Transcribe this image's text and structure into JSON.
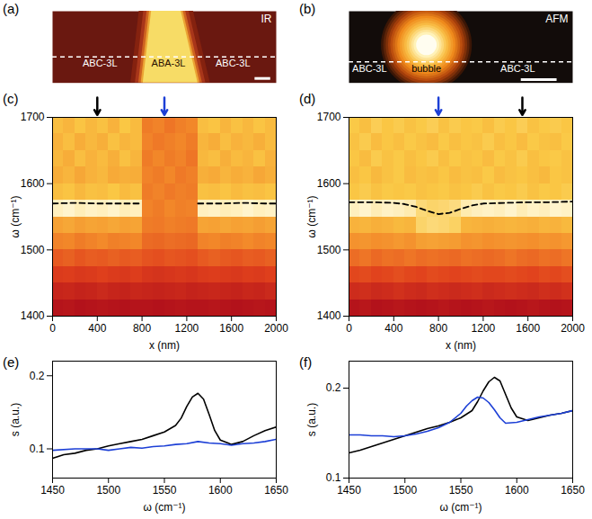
{
  "chart_data": [
    {
      "type": "image",
      "label": "(a)",
      "inset_label": "IR",
      "region_labels": [
        "ABC-3L",
        "ABA-3L",
        "ABC-3L"
      ],
      "tick_labels": false,
      "xlim": [
        0,
        2000
      ],
      "ylim": [
        0,
        640
      ],
      "stripe": {
        "top": [
          885,
          1150
        ],
        "bottom": [
          810,
          1300
        ]
      },
      "line_y": 233,
      "scale_bar": {
        "x": [
          1810,
          1950
        ],
        "y": 40
      }
    },
    {
      "type": "image",
      "label": "(b)",
      "inset_label": "AFM",
      "region_labels": [
        "ABC-3L",
        "bubble",
        "ABC-3L"
      ],
      "tick_labels": false,
      "xlim": [
        0,
        2000
      ],
      "ylim": [
        0,
        640
      ],
      "bubble": {
        "x": 692,
        "y": 340,
        "radius": 325,
        "core_radius": 115
      },
      "line_y": 188,
      "scale_bar": {
        "x": [
          1540,
          1860
        ],
        "y": 30
      }
    },
    {
      "type": "heatmap",
      "label": "(c)",
      "xlabel": "x (nm)",
      "ylabel": "ω (cm⁻¹)",
      "xlim": [
        0,
        2000
      ],
      "xticks": [
        0,
        400,
        800,
        1200,
        1600,
        2000
      ],
      "ylim": [
        1400,
        1700
      ],
      "yticks": [
        1400,
        1500,
        1600,
        1700
      ],
      "heatmap": {
        "x_edges": [
          0,
          100,
          200,
          300,
          400,
          500,
          600,
          700,
          800,
          900,
          1000,
          1100,
          1200,
          1300,
          1400,
          1500,
          1600,
          1700,
          1800,
          1900,
          2000
        ],
        "y_edges": [
          1400,
          1425,
          1450,
          1475,
          1500,
          1525,
          1550,
          1575,
          1600,
          1625,
          1650,
          1675,
          1700
        ],
        "cells": [
          [
            0.12,
            0.13,
            0.11,
            0.12,
            0.13,
            0.12,
            0.11,
            0.12,
            0.12,
            0.11,
            0.12,
            0.13,
            0.12,
            0.12,
            0.13,
            0.12,
            0.11,
            0.12,
            0.13,
            0.12
          ],
          [
            0.2,
            0.21,
            0.19,
            0.2,
            0.22,
            0.2,
            0.19,
            0.21,
            0.2,
            0.19,
            0.2,
            0.21,
            0.19,
            0.2,
            0.21,
            0.2,
            0.19,
            0.21,
            0.2,
            0.22
          ],
          [
            0.3,
            0.31,
            0.29,
            0.3,
            0.32,
            0.3,
            0.29,
            0.31,
            0.28,
            0.27,
            0.28,
            0.29,
            0.28,
            0.3,
            0.31,
            0.3,
            0.29,
            0.31,
            0.3,
            0.32
          ],
          [
            0.4,
            0.42,
            0.39,
            0.41,
            0.4,
            0.42,
            0.4,
            0.41,
            0.38,
            0.37,
            0.39,
            0.38,
            0.37,
            0.4,
            0.42,
            0.4,
            0.39,
            0.41,
            0.4,
            0.42
          ],
          [
            0.52,
            0.53,
            0.5,
            0.52,
            0.54,
            0.51,
            0.52,
            0.53,
            0.45,
            0.44,
            0.46,
            0.45,
            0.44,
            0.52,
            0.53,
            0.51,
            0.52,
            0.54,
            0.52,
            0.53
          ],
          [
            0.62,
            0.64,
            0.61,
            0.63,
            0.62,
            0.64,
            0.62,
            0.63,
            0.5,
            0.49,
            0.51,
            0.5,
            0.49,
            0.63,
            0.62,
            0.64,
            0.62,
            0.63,
            0.61,
            0.63
          ],
          [
            0.95,
            0.97,
            0.94,
            0.96,
            0.95,
            0.97,
            0.94,
            0.95,
            0.52,
            0.5,
            0.53,
            0.51,
            0.52,
            0.95,
            0.96,
            0.94,
            0.95,
            0.97,
            0.95,
            0.96
          ],
          [
            0.72,
            0.74,
            0.7,
            0.73,
            0.72,
            0.75,
            0.71,
            0.73,
            0.5,
            0.52,
            0.49,
            0.51,
            0.5,
            0.73,
            0.72,
            0.74,
            0.71,
            0.73,
            0.72,
            0.74
          ],
          [
            0.66,
            0.69,
            0.64,
            0.68,
            0.7,
            0.65,
            0.67,
            0.66,
            0.52,
            0.5,
            0.53,
            0.49,
            0.51,
            0.67,
            0.65,
            0.69,
            0.66,
            0.68,
            0.64,
            0.67
          ],
          [
            0.7,
            0.66,
            0.72,
            0.68,
            0.71,
            0.67,
            0.73,
            0.69,
            0.5,
            0.53,
            0.5,
            0.52,
            0.48,
            0.7,
            0.72,
            0.67,
            0.71,
            0.69,
            0.73,
            0.68
          ],
          [
            0.68,
            0.72,
            0.66,
            0.7,
            0.67,
            0.73,
            0.69,
            0.71,
            0.52,
            0.49,
            0.51,
            0.53,
            0.5,
            0.69,
            0.66,
            0.72,
            0.68,
            0.7,
            0.67,
            0.71
          ],
          [
            0.72,
            0.69,
            0.74,
            0.7,
            0.73,
            0.68,
            0.75,
            0.71,
            0.5,
            0.52,
            0.48,
            0.51,
            0.53,
            0.72,
            0.74,
            0.69,
            0.73,
            0.7,
            0.74,
            0.71
          ]
        ]
      },
      "peak_line": {
        "color": "black",
        "x": [
          0,
          200,
          400,
          600,
          800,
          1050,
          1300,
          1500,
          1700,
          1900,
          2000
        ],
        "values": [
          1570,
          1571,
          1570,
          1570,
          1570,
          null,
          1570,
          1570,
          1571,
          1570,
          1570
        ]
      },
      "arrows": [
        {
          "x": 400,
          "color": "black"
        },
        {
          "x": 1000,
          "color": "#1c3fd6"
        }
      ]
    },
    {
      "type": "heatmap",
      "label": "(d)",
      "xlabel": "x (nm)",
      "ylabel": "ω (cm⁻¹)",
      "xlim": [
        0,
        2000
      ],
      "xticks": [
        0,
        400,
        800,
        1200,
        1600,
        2000
      ],
      "ylim": [
        1400,
        1700
      ],
      "yticks": [
        1400,
        1500,
        1600,
        1700
      ],
      "heatmap": {
        "x_edges": [
          0,
          100,
          200,
          300,
          400,
          500,
          600,
          700,
          800,
          900,
          1000,
          1100,
          1200,
          1300,
          1400,
          1500,
          1600,
          1700,
          1800,
          1900,
          2000
        ],
        "y_edges": [
          1400,
          1425,
          1450,
          1475,
          1500,
          1525,
          1550,
          1575,
          1600,
          1625,
          1650,
          1675,
          1700
        ],
        "cells": [
          [
            0.18,
            0.19,
            0.17,
            0.18,
            0.19,
            0.18,
            0.17,
            0.18,
            0.19,
            0.18,
            0.17,
            0.18,
            0.19,
            0.18,
            0.17,
            0.18,
            0.19,
            0.18,
            0.17,
            0.18
          ],
          [
            0.28,
            0.29,
            0.27,
            0.28,
            0.3,
            0.28,
            0.27,
            0.29,
            0.28,
            0.27,
            0.28,
            0.29,
            0.27,
            0.28,
            0.29,
            0.28,
            0.27,
            0.29,
            0.28,
            0.3
          ],
          [
            0.38,
            0.39,
            0.37,
            0.38,
            0.4,
            0.38,
            0.37,
            0.39,
            0.38,
            0.37,
            0.38,
            0.39,
            0.38,
            0.38,
            0.39,
            0.38,
            0.37,
            0.39,
            0.38,
            0.4
          ],
          [
            0.48,
            0.5,
            0.47,
            0.49,
            0.48,
            0.5,
            0.48,
            0.49,
            0.48,
            0.47,
            0.49,
            0.48,
            0.47,
            0.48,
            0.5,
            0.48,
            0.47,
            0.49,
            0.48,
            0.5
          ],
          [
            0.58,
            0.59,
            0.57,
            0.58,
            0.6,
            0.58,
            0.62,
            0.63,
            0.62,
            0.61,
            0.58,
            0.59,
            0.57,
            0.58,
            0.59,
            0.58,
            0.57,
            0.59,
            0.58,
            0.6
          ],
          [
            0.68,
            0.69,
            0.67,
            0.68,
            0.7,
            0.69,
            0.8,
            0.82,
            0.81,
            0.79,
            0.69,
            0.68,
            0.67,
            0.68,
            0.69,
            0.68,
            0.67,
            0.69,
            0.68,
            0.7
          ],
          [
            0.92,
            0.94,
            0.91,
            0.93,
            0.92,
            0.9,
            0.82,
            0.8,
            0.81,
            0.83,
            0.9,
            0.92,
            0.93,
            0.92,
            0.94,
            0.91,
            0.93,
            0.92,
            0.94,
            0.93
          ],
          [
            0.74,
            0.76,
            0.73,
            0.75,
            0.74,
            0.75,
            0.73,
            0.74,
            0.75,
            0.73,
            0.74,
            0.76,
            0.73,
            0.75,
            0.74,
            0.76,
            0.73,
            0.75,
            0.74,
            0.76
          ],
          [
            0.72,
            0.74,
            0.7,
            0.73,
            0.75,
            0.71,
            0.73,
            0.72,
            0.74,
            0.71,
            0.73,
            0.72,
            0.75,
            0.71,
            0.73,
            0.74,
            0.72,
            0.7,
            0.74,
            0.73
          ],
          [
            0.74,
            0.71,
            0.76,
            0.73,
            0.75,
            0.72,
            0.74,
            0.76,
            0.72,
            0.75,
            0.73,
            0.74,
            0.71,
            0.75,
            0.73,
            0.76,
            0.72,
            0.74,
            0.75,
            0.73
          ],
          [
            0.73,
            0.76,
            0.71,
            0.74,
            0.72,
            0.75,
            0.73,
            0.71,
            0.75,
            0.72,
            0.74,
            0.73,
            0.76,
            0.72,
            0.74,
            0.71,
            0.75,
            0.73,
            0.72,
            0.75
          ],
          [
            0.75,
            0.72,
            0.77,
            0.74,
            0.76,
            0.73,
            0.75,
            0.77,
            0.73,
            0.76,
            0.74,
            0.75,
            0.72,
            0.76,
            0.74,
            0.77,
            0.73,
            0.75,
            0.76,
            0.74
          ]
        ]
      },
      "peak_line": {
        "color": "black",
        "x": [
          0,
          200,
          400,
          500,
          600,
          700,
          800,
          900,
          1000,
          1100,
          1200,
          1400,
          1600,
          1800,
          2000
        ],
        "values": [
          1572,
          1572,
          1571,
          1569,
          1565,
          1559,
          1554,
          1556,
          1562,
          1567,
          1570,
          1571,
          1572,
          1572,
          1573
        ]
      },
      "arrows": [
        {
          "x": 800,
          "color": "#1c3fd6"
        },
        {
          "x": 1550,
          "color": "black"
        }
      ]
    },
    {
      "type": "line",
      "label": "(e)",
      "xlabel": "ω (cm⁻¹)",
      "ylabel": "s (a.u.)",
      "xlim": [
        1450,
        1650
      ],
      "xticks": [
        1450,
        1500,
        1550,
        1600,
        1650
      ],
      "ylim": [
        0.06,
        0.22
      ],
      "yticks": [
        0.1,
        0.2
      ],
      "series": [
        {
          "color": "black",
          "x": [
            1450,
            1460,
            1470,
            1480,
            1490,
            1500,
            1510,
            1520,
            1530,
            1540,
            1550,
            1560,
            1565,
            1570,
            1575,
            1580,
            1585,
            1590,
            1595,
            1600,
            1610,
            1620,
            1630,
            1640,
            1650
          ],
          "values": [
            0.087,
            0.092,
            0.094,
            0.098,
            0.1,
            0.104,
            0.107,
            0.11,
            0.113,
            0.118,
            0.123,
            0.132,
            0.142,
            0.158,
            0.171,
            0.176,
            0.168,
            0.147,
            0.125,
            0.112,
            0.106,
            0.11,
            0.118,
            0.125,
            0.13
          ]
        },
        {
          "color": "#1c3fd6",
          "x": [
            1450,
            1470,
            1490,
            1500,
            1510,
            1520,
            1530,
            1540,
            1550,
            1560,
            1570,
            1580,
            1590,
            1600,
            1610,
            1620,
            1630,
            1640,
            1650
          ],
          "values": [
            0.098,
            0.1,
            0.1,
            0.098,
            0.1,
            0.102,
            0.101,
            0.103,
            0.104,
            0.106,
            0.107,
            0.11,
            0.108,
            0.107,
            0.105,
            0.107,
            0.108,
            0.11,
            0.113
          ]
        }
      ]
    },
    {
      "type": "line",
      "label": "(f)",
      "xlabel": "ω (cm⁻¹)",
      "ylabel": "s (a.u.)",
      "xlim": [
        1450,
        1650
      ],
      "xticks": [
        1450,
        1500,
        1550,
        1600,
        1650
      ],
      "ylim": [
        0.1,
        0.23
      ],
      "yticks": [
        0.1,
        0.2
      ],
      "series": [
        {
          "color": "black",
          "x": [
            1450,
            1460,
            1470,
            1480,
            1490,
            1500,
            1510,
            1520,
            1530,
            1540,
            1550,
            1560,
            1565,
            1570,
            1575,
            1580,
            1585,
            1590,
            1595,
            1600,
            1610,
            1620,
            1630,
            1640,
            1650
          ],
          "values": [
            0.128,
            0.131,
            0.135,
            0.139,
            0.143,
            0.147,
            0.151,
            0.155,
            0.158,
            0.162,
            0.167,
            0.175,
            0.185,
            0.197,
            0.207,
            0.212,
            0.208,
            0.193,
            0.178,
            0.168,
            0.164,
            0.167,
            0.17,
            0.172,
            0.175
          ]
        },
        {
          "color": "#1c3fd6",
          "x": [
            1450,
            1460,
            1470,
            1480,
            1490,
            1500,
            1510,
            1520,
            1530,
            1540,
            1550,
            1555,
            1560,
            1565,
            1570,
            1575,
            1580,
            1585,
            1590,
            1600,
            1610,
            1620,
            1630,
            1640,
            1650
          ],
          "values": [
            0.148,
            0.148,
            0.147,
            0.147,
            0.146,
            0.147,
            0.149,
            0.152,
            0.156,
            0.162,
            0.172,
            0.18,
            0.186,
            0.19,
            0.189,
            0.184,
            0.176,
            0.167,
            0.161,
            0.162,
            0.165,
            0.168,
            0.17,
            0.172,
            0.175
          ]
        }
      ]
    }
  ]
}
